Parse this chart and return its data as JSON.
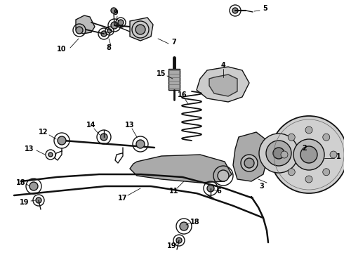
{
  "background_color": "#ffffff",
  "line_color": "#111111",
  "label_color": "#000000",
  "fig_width": 4.9,
  "fig_height": 3.6,
  "dpi": 100,
  "label_fontsize": 7.0,
  "lw_main": 1.0,
  "lw_thick": 1.8,
  "lw_thin": 0.6
}
